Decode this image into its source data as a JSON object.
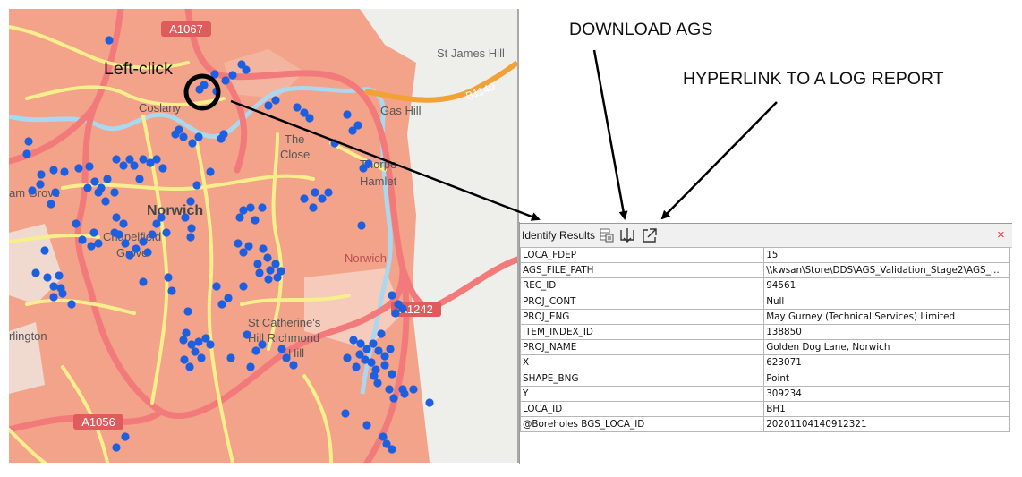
{
  "annotations": {
    "download_ags": "DOWNLOAD AGS",
    "hyperlink": "HYPERLINK TO A LOG REPORT",
    "left_click": "Left-click"
  },
  "map": {
    "labels": {
      "road_a1067": "A1067",
      "st_james_hill": "St James Hill",
      "b1140": "B1140",
      "coslany": "Coslany",
      "gas_hill": "Gas Hill",
      "the": "The",
      "close": "Close",
      "thorpe": "Thorpe",
      "hamlet": "Hamlet",
      "heigham_grove": "am Grove",
      "norwich": "Norwich",
      "chapelfield": "Chapelfield",
      "grove": "Grove",
      "norwich_station": "Norwich",
      "road_a1242": "A1242",
      "st_catherines": "St Catherine's",
      "hill_richmond": "Hill Richmond",
      "hill": "Hill",
      "lakenham": "rlington",
      "road_a1056": "A1056"
    },
    "colors": {
      "land": "#f2a38a",
      "water": "#a9d8f0",
      "major_road": "#f37a7a",
      "road": "#f6ef8c",
      "b_road": "#f2a136",
      "point": "#1c5fe0",
      "open_land": "#eeeeea"
    }
  },
  "panel": {
    "title": "Identify Results",
    "icons": {
      "table": "table-icon",
      "download": "download-icon",
      "hyperlink": "external-link-icon",
      "close": "close-icon"
    },
    "close_label": "×",
    "rows": [
      {
        "key": "LOCA_FDEP",
        "value": "15"
      },
      {
        "key": "AGS_FILE_PATH",
        "value": "\\\\kwsan\\Store\\DDS\\AGS_Validation_Stage2\\AGS_..."
      },
      {
        "key": "REC_ID",
        "value": "94561"
      },
      {
        "key": "PROJ_CONT",
        "value": "Null"
      },
      {
        "key": "PROJ_ENG",
        "value": "May Gurney (Technical Services) Limited"
      },
      {
        "key": "ITEM_INDEX_ID",
        "value": "138850"
      },
      {
        "key": "PROJ_NAME",
        "value": "Golden Dog Lane, Norwich"
      },
      {
        "key": "X",
        "value": "623071"
      },
      {
        "key": "SHAPE_BNG",
        "value": "Point"
      },
      {
        "key": "Y",
        "value": "309234"
      },
      {
        "key": "LOCA_ID",
        "value": "BH1"
      },
      {
        "key": "@Boreholes BGS_LOCA_ID",
        "value": "20201104140912321"
      }
    ]
  }
}
